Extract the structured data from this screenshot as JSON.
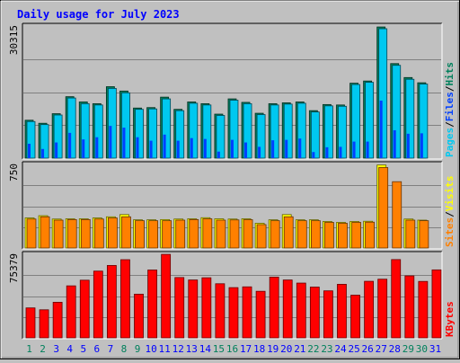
{
  "title": "Daily usage for July 2023",
  "colors": {
    "title": "#0000ff",
    "hits": "#00805c",
    "files": "#0040ff",
    "pages": "#00c8f0",
    "visits": "#ffff00",
    "sites": "#ff8000",
    "kbytes": "#ff0000",
    "weekend_label": "#00805c",
    "weekday_label": "#0000ff",
    "plot_bg": "#c0c0c0",
    "grid": "#808080"
  },
  "legends": {
    "top": [
      {
        "label": "Pages",
        "color": "#00c8f0"
      },
      {
        "label": "/",
        "color": "#000000"
      },
      {
        "label": "Files",
        "color": "#0040ff"
      },
      {
        "label": "/",
        "color": "#000000"
      },
      {
        "label": "Hits",
        "color": "#00805c"
      }
    ],
    "middle": [
      {
        "label": "Sites",
        "color": "#ff8000"
      },
      {
        "label": "/",
        "color": "#000000"
      },
      {
        "label": "Visits",
        "color": "#ffff00"
      }
    ],
    "bottom": [
      {
        "label": "KBytes",
        "color": "#ff0000"
      }
    ]
  },
  "chart_data": [
    {
      "type": "bar",
      "panel": "hits-files-pages",
      "ymax_label": "30315",
      "ylim": [
        0,
        30315
      ],
      "grid": true,
      "categories": [
        "1",
        "2",
        "3",
        "4",
        "5",
        "6",
        "7",
        "8",
        "9",
        "10",
        "11",
        "12",
        "13",
        "14",
        "15",
        "16",
        "17",
        "18",
        "19",
        "20",
        "21",
        "22",
        "23",
        "24",
        "25",
        "26",
        "27",
        "28",
        "29",
        "30",
        "31"
      ],
      "weekend_days": [
        "1",
        "2",
        "8",
        "9",
        "15",
        "16",
        "22",
        "23",
        "29",
        "30"
      ],
      "series": [
        {
          "name": "Hits",
          "values": [
            8700,
            8000,
            10200,
            14100,
            12900,
            12500,
            16400,
            15400,
            11500,
            11600,
            14000,
            11200,
            12900,
            12500,
            10100,
            13600,
            12800,
            10300,
            12500,
            12700,
            12900,
            10900,
            12300,
            12200,
            17200,
            17700,
            30100,
            21700,
            18500,
            17300,
            0
          ]
        },
        {
          "name": "Files",
          "values": [
            3300,
            2100,
            3600,
            5800,
            4300,
            4800,
            7400,
            7000,
            4800,
            4000,
            5400,
            4000,
            4600,
            4400,
            1500,
            4200,
            3600,
            2600,
            4100,
            4200,
            4500,
            1400,
            2500,
            2600,
            3800,
            3800,
            13200,
            6400,
            5600,
            5700,
            0
          ]
        },
        {
          "name": "Pages",
          "values": [
            8400,
            7700,
            9900,
            13800,
            12500,
            12200,
            16000,
            15000,
            11200,
            11300,
            13600,
            10900,
            12600,
            12200,
            9800,
            13300,
            12500,
            10000,
            12200,
            12400,
            12600,
            10600,
            12000,
            11900,
            16900,
            17400,
            29700,
            21300,
            18100,
            17000,
            0
          ]
        }
      ]
    },
    {
      "type": "bar",
      "panel": "visits-sites",
      "ymax_label": "750",
      "ylim": [
        0,
        750
      ],
      "grid": true,
      "categories": [
        "1",
        "2",
        "3",
        "4",
        "5",
        "6",
        "7",
        "8",
        "9",
        "10",
        "11",
        "12",
        "13",
        "14",
        "15",
        "16",
        "17",
        "18",
        "19",
        "20",
        "21",
        "22",
        "23",
        "24",
        "25",
        "26",
        "27",
        "28",
        "29",
        "30",
        "31"
      ],
      "series": [
        {
          "name": "Visits",
          "values": [
            270,
            290,
            260,
            262,
            262,
            270,
            280,
            300,
            253,
            253,
            255,
            260,
            262,
            272,
            262,
            260,
            262,
            222,
            253,
            300,
            253,
            253,
            238,
            230,
            238,
            240,
            745,
            0,
            260,
            250,
            0
          ]
        },
        {
          "name": "Sites",
          "values": [
            260,
            280,
            250,
            255,
            255,
            260,
            270,
            280,
            245,
            245,
            245,
            250,
            255,
            262,
            250,
            252,
            254,
            210,
            245,
            280,
            245,
            245,
            230,
            222,
            230,
            232,
            722,
            595,
            250,
            245,
            0
          ]
        }
      ]
    },
    {
      "type": "bar",
      "panel": "kbytes",
      "ymax_label": "75379",
      "ylim": [
        0,
        75379
      ],
      "grid": true,
      "categories": [
        "1",
        "2",
        "3",
        "4",
        "5",
        "6",
        "7",
        "8",
        "9",
        "10",
        "11",
        "12",
        "13",
        "14",
        "15",
        "16",
        "17",
        "18",
        "19",
        "20",
        "21",
        "22",
        "23",
        "24",
        "25",
        "26",
        "27",
        "28",
        "29",
        "30",
        "31"
      ],
      "series": [
        {
          "name": "KBytes",
          "values": [
            27000,
            25300,
            32100,
            46900,
            52000,
            60200,
            65300,
            70500,
            39400,
            61200,
            75300,
            54400,
            52200,
            54200,
            48800,
            45300,
            46000,
            42000,
            54800,
            52200,
            49400,
            45800,
            42400,
            48300,
            38500,
            51000,
            52900,
            70600,
            55900,
            50900,
            61300
          ]
        }
      ]
    }
  ]
}
